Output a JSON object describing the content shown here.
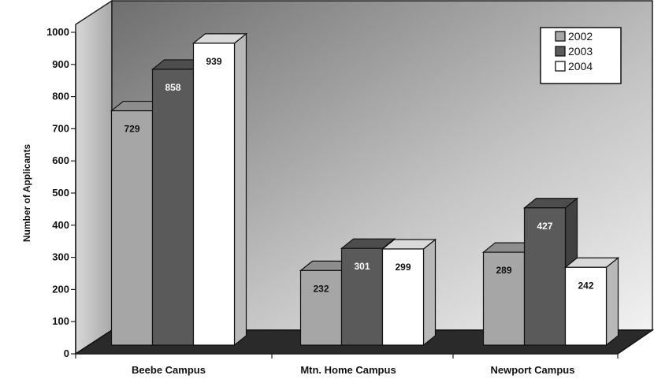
{
  "chart_data": {
    "type": "bar",
    "title": "",
    "xlabel": "",
    "ylabel": "Number of Applicants",
    "ylim": [
      0,
      1000
    ],
    "y_ticks": [
      0,
      100,
      200,
      300,
      400,
      500,
      600,
      700,
      800,
      900,
      1000
    ],
    "grid": false,
    "legend_position": "top-right",
    "categories": [
      "Beebe Campus",
      "Mtn. Home Campus",
      "Newport Campus"
    ],
    "series": [
      {
        "name": "2002",
        "values": [
          729,
          232,
          289
        ],
        "color": "#a6a6a6",
        "label_color": "#111111"
      },
      {
        "name": "2003",
        "values": [
          858,
          301,
          427
        ],
        "color": "#5a5a5a",
        "label_color": "#ffffff"
      },
      {
        "name": "2004",
        "values": [
          939,
          299,
          242
        ],
        "color": "#ffffff",
        "label_color": "#111111"
      }
    ]
  }
}
